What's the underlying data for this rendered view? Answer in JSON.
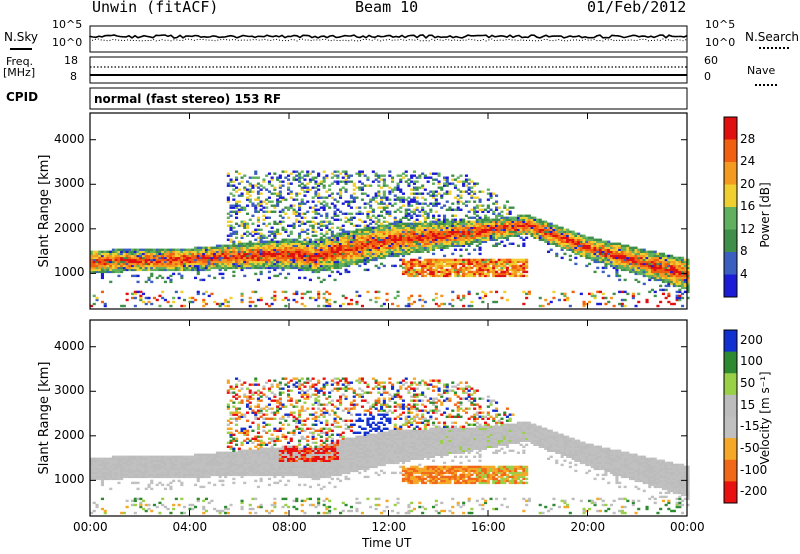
{
  "header": {
    "station": "Unwin (fitACF)",
    "beam": "Beam 10",
    "date": "01/Feb/2012"
  },
  "noise_panel": {
    "left_label": "N.Sky",
    "right_label": "N.Search",
    "left_ticks": [
      "10^5",
      "10^0"
    ],
    "right_ticks": [
      "10^5",
      "10^0"
    ]
  },
  "freq_panel": {
    "left_label_1": "Freq.",
    "left_label_2": "[MHz]",
    "right_label": "Nave",
    "left_ticks": [
      "18",
      "8"
    ],
    "right_ticks": [
      "60",
      "0"
    ]
  },
  "cpid": {
    "label": "CPID",
    "value": "normal (fast stereo) 153 RF"
  },
  "colors": {
    "power_scale": [
      "#1c1cd6",
      "#3a5fc0",
      "#3f8f4a",
      "#60b060",
      "#f0d030",
      "#f59a20",
      "#f06010",
      "#e01010"
    ],
    "velocity_scale": [
      "#e81010",
      "#f06818",
      "#f5a828",
      "#c0c0c0",
      "#bcbcbc",
      "#98d048",
      "#2e8a30",
      "#1030d0"
    ]
  },
  "chart_data": [
    {
      "type": "heatmap",
      "ylabel": "Slant Range [km]",
      "ylim": [
        200,
        4600
      ],
      "yticks": [
        "1000",
        "2000",
        "3000",
        "4000"
      ],
      "xlim_hours": [
        0,
        24
      ],
      "colorbar": {
        "label": "Power [dB]",
        "ticks": [
          "4",
          "8",
          "12",
          "16",
          "20",
          "24",
          "28"
        ],
        "range": [
          0,
          32
        ]
      },
      "echo_regions": [
        {
          "feature": "main_band_lower_edge_km",
          "x_hours": [
            0,
            4,
            8,
            9,
            10,
            12,
            16,
            17.5,
            20,
            24
          ],
          "y_km": [
            1000,
            1050,
            1100,
            1000,
            1100,
            1350,
            1700,
            1850,
            1300,
            600
          ]
        },
        {
          "feature": "main_band_upper_edge_km",
          "x_hours": [
            0,
            4,
            8,
            9,
            10,
            12,
            16,
            17.5,
            20,
            24
          ],
          "y_km": [
            1500,
            1550,
            1750,
            1700,
            1900,
            2100,
            2200,
            2300,
            1800,
            1300
          ]
        },
        {
          "feature": "upper_patchy_top_km",
          "x_hours": [
            5.5,
            8,
            12,
            15,
            17
          ],
          "y_km": [
            3300,
            3300,
            3300,
            3200,
            2500
          ]
        },
        {
          "feature": "lower_band_12_to_17_5_km",
          "x_hours": [
            12.5,
            17.5
          ],
          "y_km": [
            900,
            1300
          ]
        }
      ]
    },
    {
      "type": "heatmap",
      "ylabel": "Slant Range [km]",
      "xlabel": "Time UT",
      "ylim": [
        200,
        4600
      ],
      "yticks": [
        "1000",
        "2000",
        "3000",
        "4000"
      ],
      "xticks": [
        "00:00",
        "04:00",
        "08:00",
        "12:00",
        "16:00",
        "20:00",
        "00:00"
      ],
      "xlim_hours": [
        0,
        24
      ],
      "colorbar": {
        "label": "Velocity [m s⁻¹]",
        "ticks": [
          "200",
          "100",
          "50",
          "15",
          "-15",
          "-50",
          "-100",
          "-200"
        ],
        "range": [
          -250,
          250
        ]
      },
      "echo_regions": [
        {
          "feature": "negative_velocity_patch_km",
          "x_hours": [
            7.5,
            10
          ],
          "y_km": [
            1400,
            2000
          ],
          "velocity_ms": -200
        },
        {
          "feature": "positive_velocity_patch_km",
          "x_hours": [
            10.5,
            12
          ],
          "y_km": [
            1900,
            2500
          ],
          "velocity_ms": 200
        },
        {
          "feature": "slow_ground_scatter_band",
          "x_hours": [
            0,
            24
          ],
          "y_km": [
            1000,
            1500
          ],
          "velocity_ms": 0
        }
      ]
    }
  ]
}
